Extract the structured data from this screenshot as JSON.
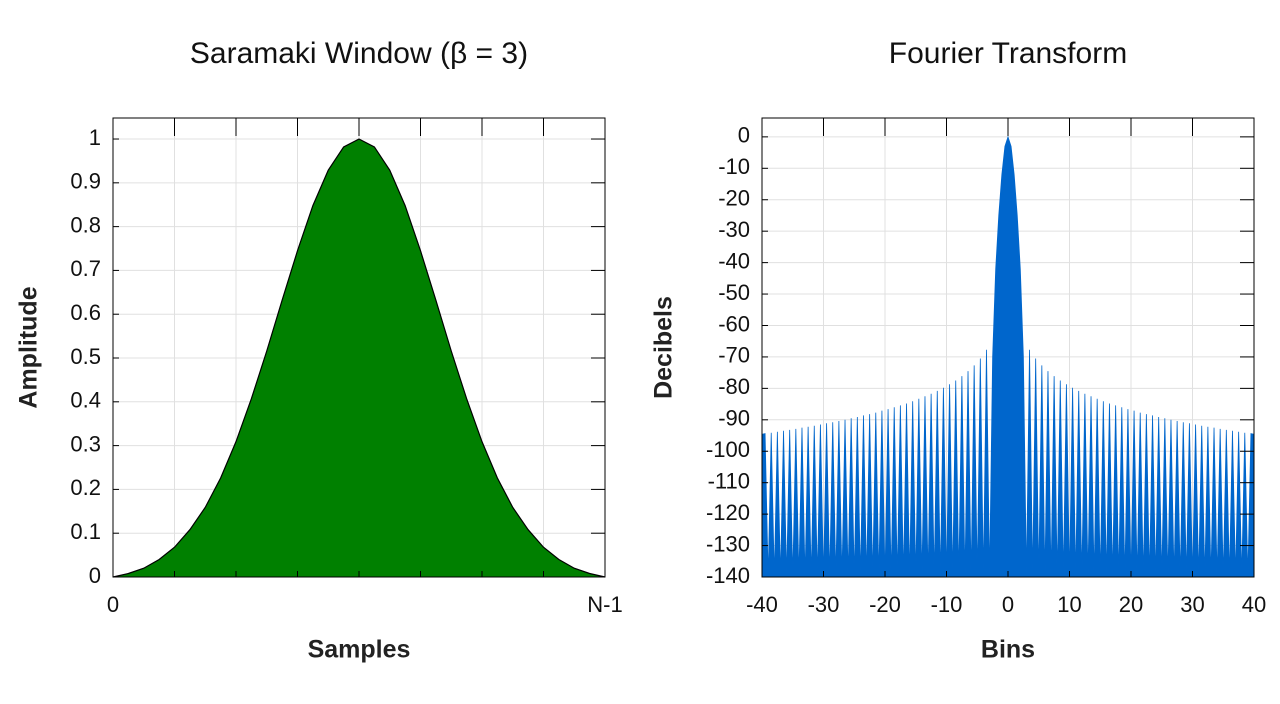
{
  "chart_data": [
    {
      "type": "area",
      "title": "Saramaki Window (β = 3)",
      "xlabel": "Samples",
      "ylabel": "Amplitude",
      "x": [
        0,
        0.03125,
        0.0625,
        0.09375,
        0.125,
        0.15625,
        0.1875,
        0.21875,
        0.25,
        0.28125,
        0.3125,
        0.34375,
        0.375,
        0.40625,
        0.4375,
        0.46875,
        0.5,
        0.53125,
        0.5625,
        0.59375,
        0.625,
        0.65625,
        0.6875,
        0.71875,
        0.75,
        0.78125,
        0.8125,
        0.84375,
        0.875,
        0.90625,
        0.9375,
        0.96875,
        1
      ],
      "values": [
        0,
        0.008,
        0.02,
        0.04,
        0.068,
        0.108,
        0.159,
        0.226,
        0.309,
        0.407,
        0.516,
        0.632,
        0.745,
        0.848,
        0.929,
        0.982,
        1,
        0.982,
        0.929,
        0.848,
        0.745,
        0.632,
        0.516,
        0.407,
        0.309,
        0.226,
        0.159,
        0.108,
        0.068,
        0.04,
        0.02,
        0.008,
        0
      ],
      "color": "#008000",
      "edgecolor": "#000000",
      "xlim": [
        0,
        1
      ],
      "xticks": [
        0,
        {
          "value": 1,
          "label": "N-1"
        }
      ],
      "xgrid": [
        0.125,
        0.25,
        0.375,
        0.5,
        0.625,
        0.75,
        0.875
      ],
      "ylim": [
        0,
        1.048
      ],
      "yticks": [
        0,
        0.1,
        0.2,
        0.3,
        0.4,
        0.5,
        0.6,
        0.7,
        0.8,
        0.9,
        1
      ],
      "grid": true
    },
    {
      "type": "area",
      "title": "Fourier Transform",
      "xlabel": "Bins",
      "ylabel": "Decibels",
      "x": [
        -40,
        -39.5,
        -39,
        -38.5,
        -38,
        -37.5,
        -37,
        -36.5,
        -36,
        -35.5,
        -35,
        -34.5,
        -34,
        -33.5,
        -33,
        -32.5,
        -32,
        -31.5,
        -31,
        -30.5,
        -30,
        -29.5,
        -29,
        -28.5,
        -28,
        -27.5,
        -27,
        -26.5,
        -26,
        -25.5,
        -25,
        -24.5,
        -24,
        -23.5,
        -23,
        -22.5,
        -22,
        -21.5,
        -21,
        -20.5,
        -20,
        -19.5,
        -19,
        -18.5,
        -18,
        -17.5,
        -17,
        -16.5,
        -16,
        -15.5,
        -15,
        -14.5,
        -14,
        -13.5,
        -13,
        -12.5,
        -12,
        -11.5,
        -11,
        -10.5,
        -10,
        -9.5,
        -9,
        -8.5,
        -8,
        -7.5,
        -7,
        -6.5,
        -6,
        -5.5,
        -5,
        -4.5,
        -4,
        -3.5,
        -3,
        -2.5,
        -2,
        -1.5,
        -1,
        -0.5,
        0,
        0.5,
        1,
        1.5,
        2,
        2.5,
        3,
        3.5,
        4,
        4.5,
        5,
        5.5,
        6,
        6.5,
        7,
        7.5,
        8,
        8.5,
        9,
        9.5,
        10,
        10.5,
        11,
        11.5,
        12,
        12.5,
        13,
        13.5,
        14,
        14.5,
        15,
        15.5,
        16,
        16.5,
        17,
        17.5,
        18,
        18.5,
        19,
        19.5,
        20,
        20.5,
        21,
        21.5,
        22,
        22.5,
        23,
        23.5,
        24,
        24.5,
        25,
        25.5,
        26,
        26.5,
        27,
        27.5,
        28,
        28.5,
        29,
        29.5,
        30,
        30.5,
        31,
        31.5,
        32,
        32.5,
        33,
        33.5,
        34,
        34.5,
        35,
        35.5,
        36,
        36.5,
        37,
        37.5,
        38,
        38.5,
        39,
        39.5,
        40
      ],
      "values": [
        -94.6,
        -94.4,
        -140,
        -94.1,
        -140,
        -93.8,
        -140,
        -93.5,
        -140,
        -93.2,
        -140,
        -92.9,
        -140,
        -92.5,
        -140,
        -92.2,
        -140,
        -91.9,
        -140,
        -91.5,
        -140,
        -91.1,
        -140,
        -90.8,
        -140,
        -90.4,
        -140,
        -90,
        -140,
        -89.5,
        -140,
        -89.1,
        -140,
        -88.6,
        -140,
        -88.2,
        -140,
        -87.7,
        -140,
        -87.1,
        -140,
        -86.6,
        -140,
        -86,
        -140,
        -85.4,
        -140,
        -84.8,
        -140,
        -84.1,
        -140,
        -83.3,
        -140,
        -82.5,
        -140,
        -81.7,
        -140,
        -80.8,
        -140,
        -79.8,
        -140,
        -78.7,
        -140,
        -77.5,
        -140,
        -76.1,
        -140,
        -74.5,
        -140,
        -72.7,
        -140,
        -70.5,
        -140,
        -67.7,
        -140,
        -70,
        -42,
        -25,
        -12,
        -3,
        0,
        -3,
        -12,
        -25,
        -42,
        -70,
        -140,
        -67.7,
        -140,
        -70.5,
        -140,
        -72.7,
        -140,
        -74.5,
        -140,
        -76.1,
        -140,
        -77.5,
        -140,
        -78.7,
        -140,
        -79.8,
        -140,
        -80.8,
        -140,
        -81.7,
        -140,
        -82.5,
        -140,
        -83.3,
        -140,
        -84.1,
        -140,
        -84.8,
        -140,
        -85.4,
        -140,
        -86,
        -140,
        -86.6,
        -140,
        -87.1,
        -140,
        -87.7,
        -140,
        -88.2,
        -140,
        -88.6,
        -140,
        -89.1,
        -140,
        -89.5,
        -140,
        -90,
        -140,
        -90.4,
        -140,
        -90.8,
        -140,
        -91.1,
        -140,
        -91.5,
        -140,
        -91.9,
        -140,
        -92.2,
        -140,
        -92.5,
        -140,
        -92.9,
        -140,
        -93.2,
        -140,
        -93.5,
        -140,
        -93.8,
        -140,
        -94.1,
        -140,
        -94.4,
        -94.6
      ],
      "color": "#0066cc",
      "xlim": [
        -40,
        40
      ],
      "xticks": [
        -40,
        -30,
        -20,
        -10,
        0,
        10,
        20,
        30,
        40
      ],
      "ylim": [
        -140,
        6
      ],
      "yticks": [
        0,
        -10,
        -20,
        -30,
        -40,
        -50,
        -60,
        -70,
        -80,
        -90,
        -100,
        -110,
        -120,
        -130,
        -140
      ],
      "grid": true
    }
  ]
}
